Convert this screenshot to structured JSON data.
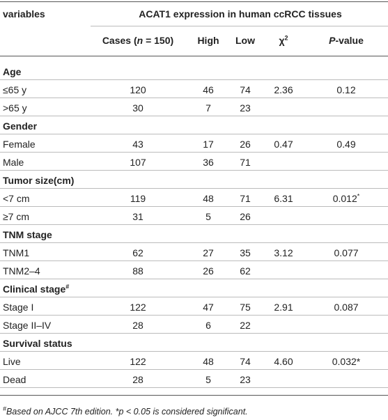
{
  "header": {
    "variables": "variables",
    "group": "ACAT1 expression in human ccRCC tissues",
    "columns": [
      {
        "parts": [
          {
            "text": "Cases ("
          },
          {
            "text": "n",
            "italic": true
          },
          {
            "text": " = 150)"
          }
        ]
      },
      {
        "parts": [
          {
            "text": "High"
          }
        ]
      },
      {
        "parts": [
          {
            "text": "Low"
          }
        ]
      },
      {
        "parts": [
          {
            "text": "χ"
          },
          {
            "text": "2",
            "sup": true
          }
        ]
      },
      {
        "parts": [
          {
            "text": "P",
            "italic": true
          },
          {
            "text": "-value"
          }
        ]
      }
    ]
  },
  "groups": [
    {
      "label": "Age",
      "rows": [
        [
          "≤65 y",
          "120",
          "46",
          "74",
          "2.36",
          "0.12"
        ],
        [
          ">65 y",
          "30",
          "7",
          "23"
        ]
      ]
    },
    {
      "label": "Gender",
      "rows": [
        [
          "Female",
          "43",
          "17",
          "26",
          "0.47",
          "0.49"
        ],
        [
          "Male",
          "107",
          "36",
          "71"
        ]
      ]
    },
    {
      "label": "Tumor size(cm)",
      "rows": [
        [
          "<7 cm",
          "119",
          "48",
          "71",
          "6.31",
          {
            "text": "0.012",
            "sup": "*"
          }
        ],
        [
          "≥7 cm",
          "31",
          "5",
          "26"
        ]
      ]
    },
    {
      "label": "TNM stage",
      "rows": [
        [
          "TNM1",
          "62",
          "27",
          "35",
          "3.12",
          "0.077"
        ],
        [
          "TNM2–4",
          "88",
          "26",
          "62"
        ]
      ]
    },
    {
      "label": "Clinical stage",
      "sup": "#",
      "rows": [
        [
          "Stage I",
          "122",
          "47",
          "75",
          "2.91",
          "0.087"
        ],
        [
          "Stage II–IV",
          "28",
          "6",
          "22"
        ]
      ]
    },
    {
      "label": "Survival status",
      "rows": [
        [
          "Live",
          "122",
          "48",
          "74",
          "4.60",
          "0.032*"
        ],
        [
          "Dead",
          "28",
          "5",
          "23"
        ]
      ]
    }
  ],
  "footnote": {
    "mark": "#",
    "text": "Based on AJCC 7th edition. *p < 0.05 is considered significant."
  }
}
